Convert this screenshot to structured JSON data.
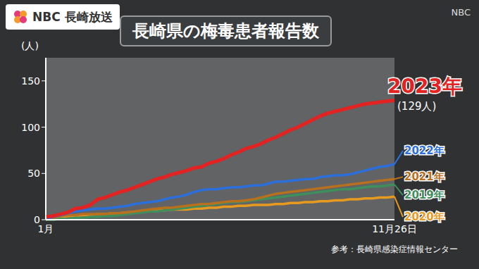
{
  "chart_data": {
    "type": "line",
    "title": "長崎県の梅毒患者報告数",
    "ylabel": "(人)",
    "annotation": "(129人)",
    "source": "参考：長崎県感染症情報センター",
    "logo": "NBC 長崎放送",
    "corner_label": "NBC",
    "categories": [
      "1月",
      null,
      null,
      null,
      null,
      null,
      null,
      null,
      null,
      null,
      null,
      null,
      null,
      null,
      null,
      null,
      null,
      null,
      null,
      null,
      null,
      null,
      null,
      null,
      null,
      null,
      null,
      null,
      null,
      null,
      null,
      null,
      null,
      null,
      null,
      null,
      null,
      null,
      null,
      null,
      null,
      null,
      null,
      null,
      null,
      null,
      null,
      "11月26日"
    ],
    "series": [
      {
        "name": "2023年",
        "color": "#e32222",
        "values": [
          3,
          4,
          6,
          8,
          12,
          13,
          16,
          22,
          24,
          27,
          30,
          32,
          35,
          38,
          41,
          44,
          46,
          49,
          51,
          53,
          56,
          57,
          61,
          63,
          66,
          70,
          73,
          77,
          79,
          82,
          86,
          89,
          93,
          97,
          100,
          104,
          108,
          112,
          115,
          117,
          119,
          121,
          123,
          125,
          126,
          127,
          128,
          129
        ]
      },
      {
        "name": "2022年",
        "color": "#2a6fdb",
        "values": [
          1,
          3,
          5,
          7,
          9,
          10,
          11,
          12,
          12,
          13,
          14,
          15,
          17,
          18,
          19,
          20,
          22,
          24,
          25,
          27,
          30,
          32,
          33,
          33,
          34,
          35,
          35,
          36,
          37,
          37,
          39,
          41,
          41,
          42,
          43,
          44,
          44,
          46,
          47,
          48,
          48,
          49,
          51,
          53,
          55,
          57,
          58,
          60
        ]
      },
      {
        "name": "2021年",
        "color": "#b8701e",
        "values": [
          0,
          2,
          4,
          5,
          5,
          6,
          6,
          6,
          6,
          7,
          7,
          8,
          9,
          10,
          11,
          12,
          13,
          13,
          14,
          15,
          16,
          17,
          17,
          18,
          19,
          20,
          20,
          21,
          22,
          24,
          26,
          28,
          29,
          30,
          31,
          32,
          33,
          34,
          35,
          36,
          37,
          38,
          39,
          40,
          41,
          42,
          43,
          44
        ]
      },
      {
        "name": "2019年",
        "color": "#3e8f5c",
        "values": [
          0,
          0,
          1,
          1,
          2,
          2,
          3,
          3,
          4,
          4,
          5,
          6,
          7,
          8,
          9,
          9,
          10,
          11,
          12,
          13,
          14,
          15,
          16,
          17,
          18,
          19,
          19,
          20,
          21,
          22,
          23,
          24,
          25,
          26,
          27,
          28,
          29,
          30,
          31,
          32,
          33,
          33,
          34,
          35,
          36,
          36,
          37,
          38
        ]
      },
      {
        "name": "2020年",
        "color": "#e69a1e",
        "values": [
          1,
          2,
          3,
          4,
          4,
          5,
          5,
          6,
          6,
          7,
          7,
          8,
          8,
          9,
          9,
          10,
          10,
          11,
          11,
          11,
          12,
          12,
          13,
          13,
          14,
          14,
          15,
          15,
          16,
          16,
          16,
          17,
          17,
          18,
          18,
          19,
          19,
          20,
          20,
          21,
          21,
          22,
          22,
          23,
          23,
          24,
          24,
          25
        ]
      }
    ],
    "ylim": [
      0,
      175
    ],
    "yticks": [
      0,
      50,
      100,
      150
    ],
    "grid": false
  }
}
